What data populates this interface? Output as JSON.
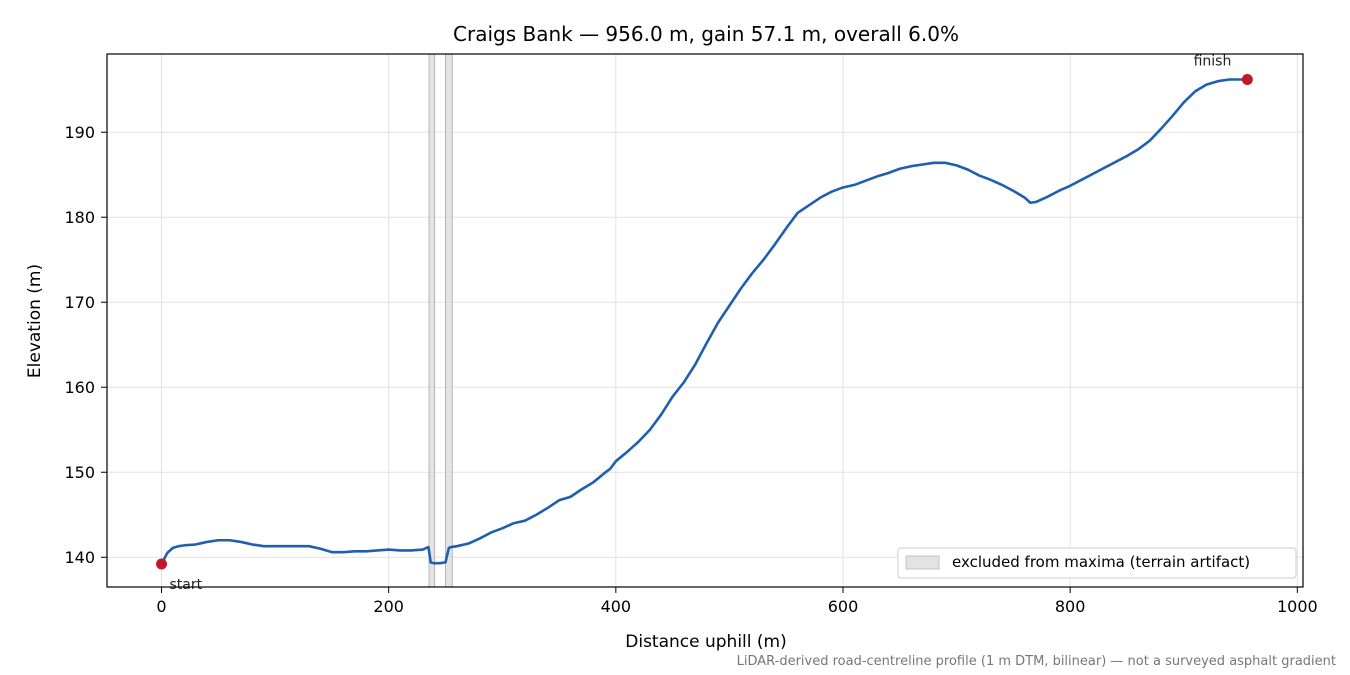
{
  "chart_data": {
    "type": "line",
    "title": "Craigs Bank — 956.0 m, gain 57.1 m, overall 6.0%",
    "xlabel": "Distance uphill (m)",
    "ylabel": "Elevation (m)",
    "xlim": [
      -48,
      1005
    ],
    "ylim": [
      136.5,
      199.2
    ],
    "xticks": [
      0,
      200,
      400,
      600,
      800,
      1000
    ],
    "yticks": [
      140,
      150,
      160,
      170,
      180,
      190
    ],
    "grid": true,
    "line_color": "#1f5fb0",
    "marker_color": "#c0192a",
    "series": [
      {
        "x": [
          0,
          5,
          10,
          15,
          20,
          30,
          40,
          50,
          60,
          70,
          80,
          90,
          100,
          110,
          120,
          130,
          140,
          150,
          155,
          160,
          170,
          180,
          190,
          200,
          210,
          220,
          230,
          235,
          237,
          240,
          245,
          250,
          253,
          255,
          260,
          270,
          280,
          290,
          300,
          310,
          320,
          330,
          340,
          350,
          360,
          370,
          380,
          390,
          395,
          400,
          410,
          420,
          430,
          440,
          450,
          460,
          470,
          480,
          490,
          500,
          510,
          520,
          530,
          540,
          550,
          560,
          570,
          580,
          590,
          600,
          610,
          620,
          630,
          640,
          650,
          660,
          670,
          680,
          690,
          700,
          710,
          720,
          730,
          740,
          750,
          760,
          765,
          770,
          780,
          790,
          800,
          810,
          820,
          830,
          840,
          850,
          860,
          870,
          880,
          890,
          900,
          910,
          920,
          930,
          940,
          950,
          956
        ],
        "y": [
          139.2,
          140.5,
          141.1,
          141.3,
          141.4,
          141.5,
          141.8,
          142.0,
          142.0,
          141.8,
          141.5,
          141.3,
          141.3,
          141.3,
          141.3,
          141.3,
          141.0,
          140.6,
          140.6,
          140.6,
          140.7,
          140.7,
          140.8,
          140.9,
          140.8,
          140.8,
          140.9,
          141.2,
          139.4,
          139.3,
          139.3,
          139.4,
          141.1,
          141.2,
          141.3,
          141.6,
          142.2,
          142.9,
          143.4,
          144.0,
          144.3,
          145.0,
          145.8,
          146.7,
          147.1,
          148.0,
          148.8,
          149.9,
          150.4,
          151.3,
          152.4,
          153.6,
          155.0,
          156.8,
          158.9,
          160.6,
          162.7,
          165.2,
          167.6,
          169.6,
          171.6,
          173.4,
          175.0,
          176.8,
          178.7,
          180.5,
          181.4,
          182.3,
          183.0,
          183.5,
          183.8,
          184.3,
          184.8,
          185.2,
          185.7,
          186.0,
          186.2,
          186.4,
          186.4,
          186.1,
          185.6,
          184.9,
          184.4,
          183.8,
          183.1,
          182.3,
          181.7,
          181.8,
          182.4,
          183.1,
          183.7,
          184.4,
          185.1,
          185.8,
          186.5,
          187.2,
          188.0,
          189.0,
          190.4,
          191.9,
          193.5,
          194.8,
          195.6,
          196.0,
          196.2,
          196.2,
          196.2
        ]
      }
    ],
    "markers": [
      {
        "x": 0,
        "y": 139.2,
        "label": "start"
      },
      {
        "x": 956,
        "y": 196.2,
        "label": "finish"
      }
    ],
    "excluded_bands": [
      [
        235.5,
        240.5
      ],
      [
        250.0,
        256.0
      ]
    ],
    "legend": {
      "placement": "lower-right",
      "label": "excluded from maxima (terrain artifact)"
    },
    "footnote": "LiDAR-derived road-centreline profile (1 m DTM, bilinear) — not a surveyed asphalt gradient"
  }
}
